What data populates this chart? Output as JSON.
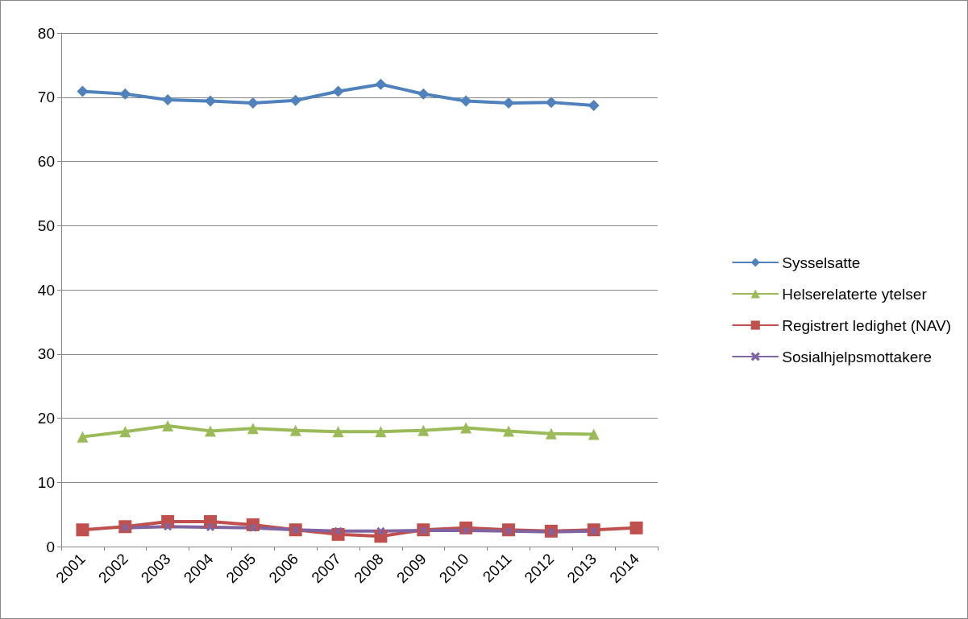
{
  "chart_data": {
    "type": "line",
    "categories": [
      "2001",
      "2002",
      "2003",
      "2004",
      "2005",
      "2006",
      "2007",
      "2008",
      "2009",
      "2010",
      "2011",
      "2012",
      "2013",
      "2014"
    ],
    "series": [
      {
        "name": "Sysselsatte",
        "color": "#4f81bd",
        "marker": "diamond",
        "values": [
          70.9,
          70.5,
          69.6,
          69.4,
          69.1,
          69.5,
          70.9,
          72,
          70.5,
          69.4,
          69.1,
          69.2,
          68.7,
          null
        ]
      },
      {
        "name": "Helserelaterte ytelser",
        "color": "#9bbb59",
        "marker": "triangle",
        "values": [
          17.1,
          17.9,
          18.8,
          18,
          18.4,
          18.1,
          17.9,
          17.9,
          18.1,
          18.5,
          18,
          17.6,
          17.5,
          null
        ]
      },
      {
        "name": "Registrert ledighet (NAV)",
        "color": "#c0504d",
        "marker": "square",
        "values": [
          2.6,
          3.1,
          3.9,
          3.9,
          3.4,
          2.6,
          1.9,
          1.6,
          2.6,
          2.9,
          2.6,
          2.4,
          2.6,
          2.9
        ]
      },
      {
        "name": "Sosialhjelpsmottakere",
        "color": "#8064a2",
        "marker": "cross",
        "values": [
          null,
          2.9,
          3.1,
          3,
          2.9,
          2.6,
          2.4,
          2.4,
          2.5,
          2.5,
          2.4,
          2.3,
          2.4,
          null
        ]
      }
    ],
    "ylim": [
      0,
      80
    ],
    "yticks": [
      0,
      10,
      20,
      30,
      40,
      50,
      60,
      70,
      80
    ],
    "grid": "y",
    "legend": "right",
    "line_style": "solid"
  }
}
